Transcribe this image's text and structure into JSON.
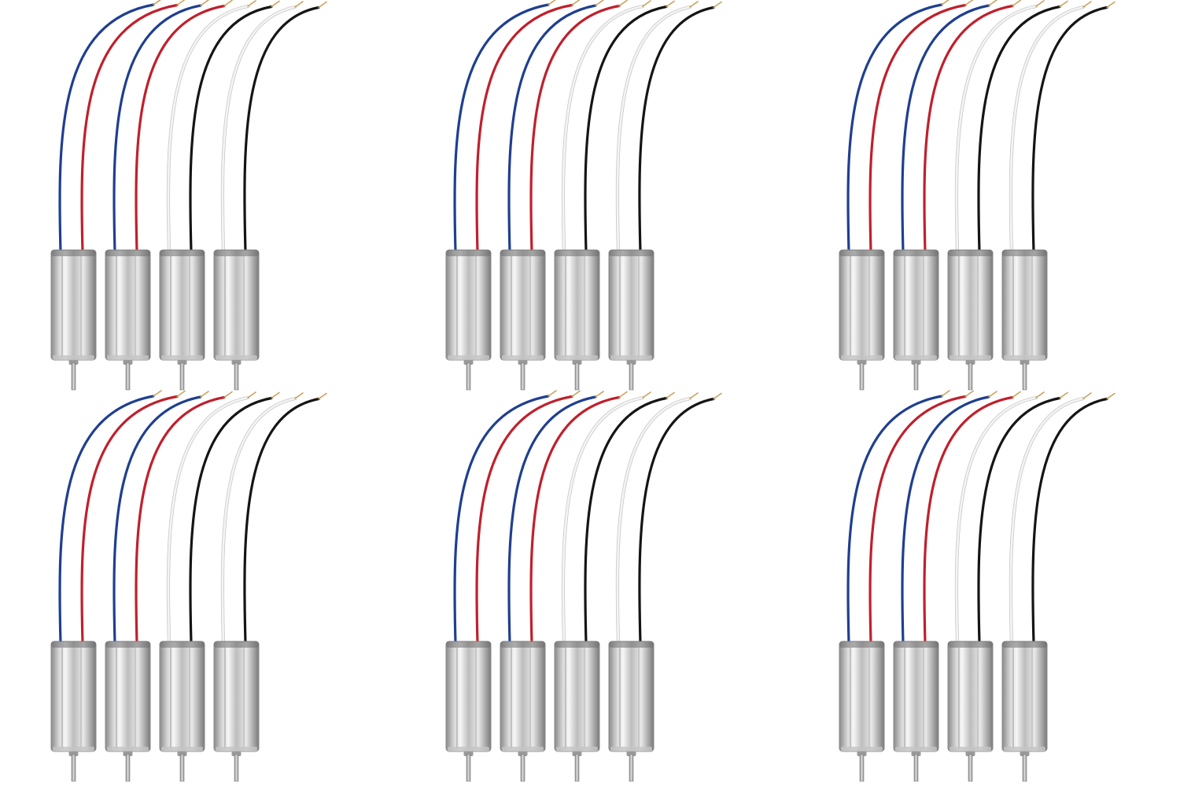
{
  "image": {
    "subject": "product-photo",
    "background_color": "#ffffff"
  },
  "layout": {
    "group_rows": 2,
    "group_columns": 3,
    "motors_per_group": 4
  },
  "wire_colors": {
    "blue": "#1f3f8f",
    "red": "#c0202c",
    "white": "#f4f4f4",
    "white_outline": "#c8c8c8",
    "black": "#151515",
    "copper_tip": "#c9a15a"
  },
  "motor_wire_pairs": [
    [
      "blue",
      "red"
    ],
    [
      "blue",
      "red"
    ],
    [
      "white",
      "black"
    ],
    [
      "white",
      "black"
    ]
  ],
  "motor_colors": {
    "body_dark": "#8a8a8a",
    "body_light": "#f2f2f2",
    "body_mid": "#c4c4c4",
    "band": "#6e6e6e",
    "shaft": "#b0b0b0"
  },
  "icons": {
    "motor": "coreless-motor-icon",
    "wire": "lead-wire-icon"
  }
}
